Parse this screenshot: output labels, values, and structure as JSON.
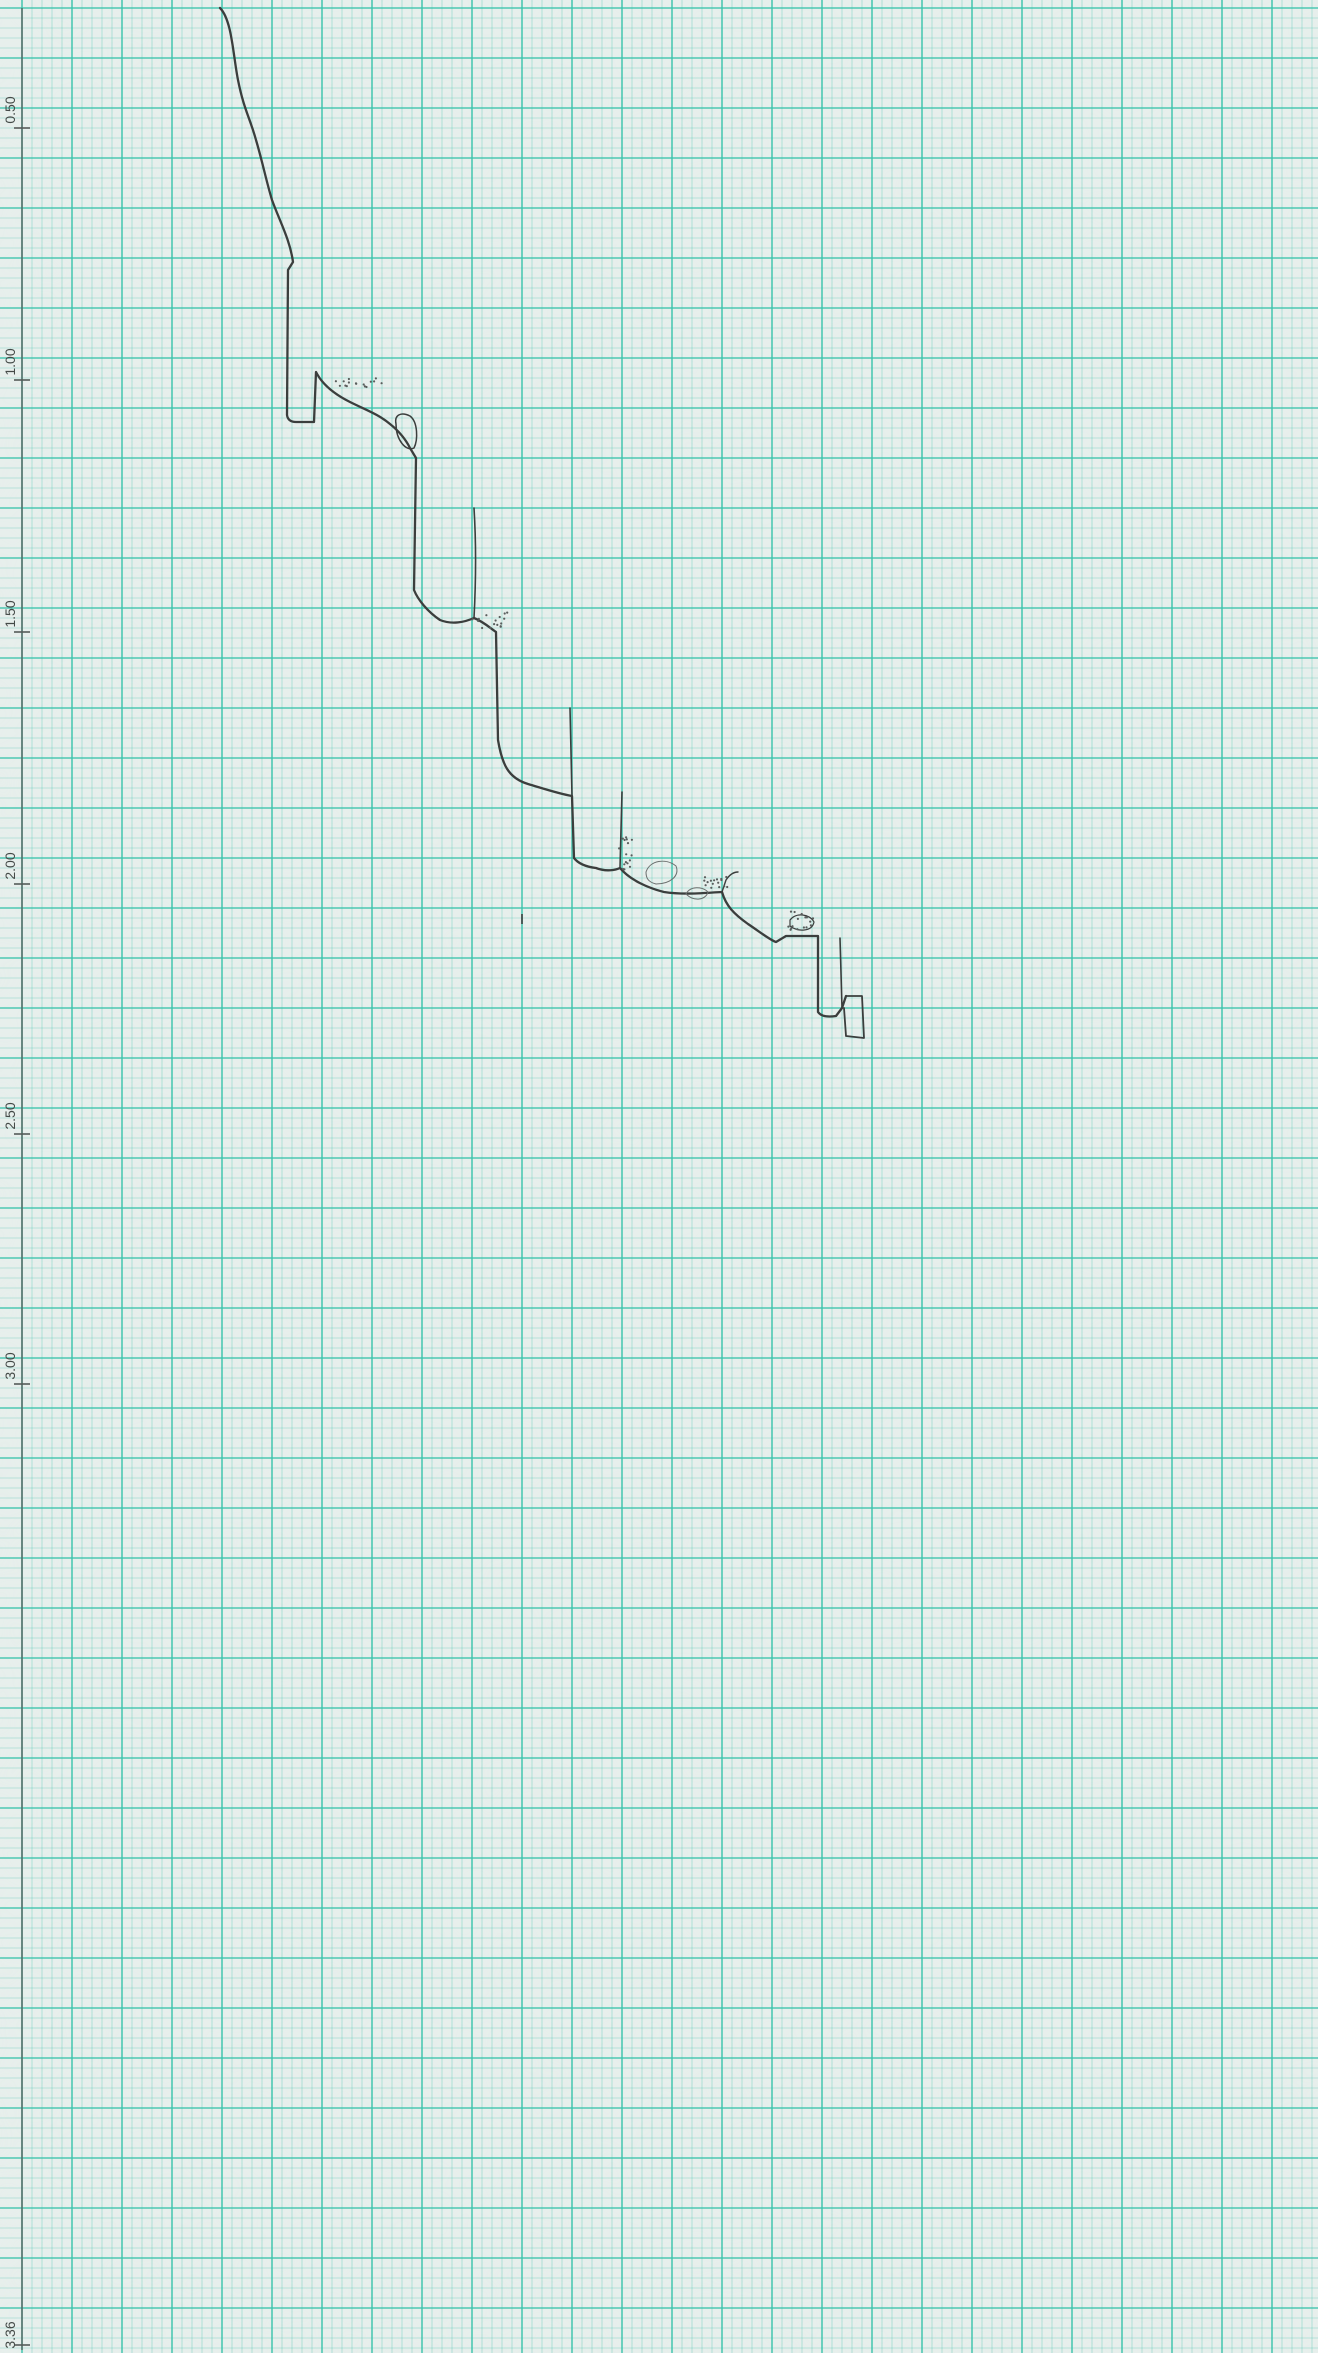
{
  "paper": {
    "background_color": "#e7efec",
    "grid_color": "#3cc3ad",
    "pencil_color": "#3b3e3d"
  },
  "depth_axis": {
    "tick_labels": [
      "0.50",
      "1.00",
      "1.50",
      "2.00",
      "2.50",
      "3.00",
      "3.36"
    ]
  }
}
